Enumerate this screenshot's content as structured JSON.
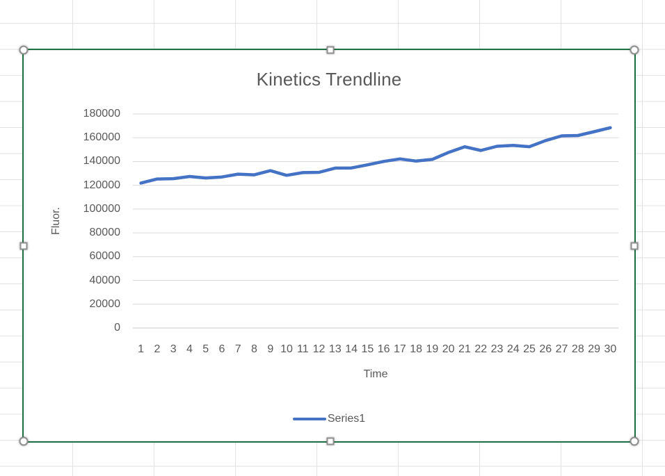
{
  "chart": {
    "selected": true,
    "colors": {
      "series": "#4472C4",
      "text": "#595959",
      "gridline": "#D9D9D9",
      "axis_line": "#C9C9C9",
      "selection_border": "#1F7145"
    }
  },
  "chart_data": {
    "type": "line",
    "title": "Kinetics Trendline",
    "xlabel": "Time",
    "ylabel": "Fluor.",
    "categories": [
      1,
      2,
      3,
      4,
      5,
      6,
      7,
      8,
      9,
      10,
      11,
      12,
      13,
      14,
      15,
      16,
      17,
      18,
      19,
      20,
      21,
      22,
      23,
      24,
      25,
      26,
      27,
      28,
      29,
      30
    ],
    "series": [
      {
        "name": "Series1",
        "color": "#4472C4",
        "values": [
          121900,
          125300,
          125600,
          127400,
          126200,
          127000,
          129400,
          128800,
          132300,
          128400,
          130700,
          130900,
          134500,
          134600,
          137200,
          140100,
          142200,
          140400,
          141800,
          147600,
          152400,
          149300,
          152800,
          153500,
          152500,
          157600,
          161600,
          161900,
          165100,
          168400
        ]
      }
    ],
    "ylim": [
      0,
      180000
    ],
    "yticks": [
      0,
      20000,
      40000,
      60000,
      80000,
      100000,
      120000,
      140000,
      160000,
      180000
    ],
    "grid": "horizontal",
    "legend_position": "bottom",
    "category_axis_placement": "between-ticks"
  }
}
